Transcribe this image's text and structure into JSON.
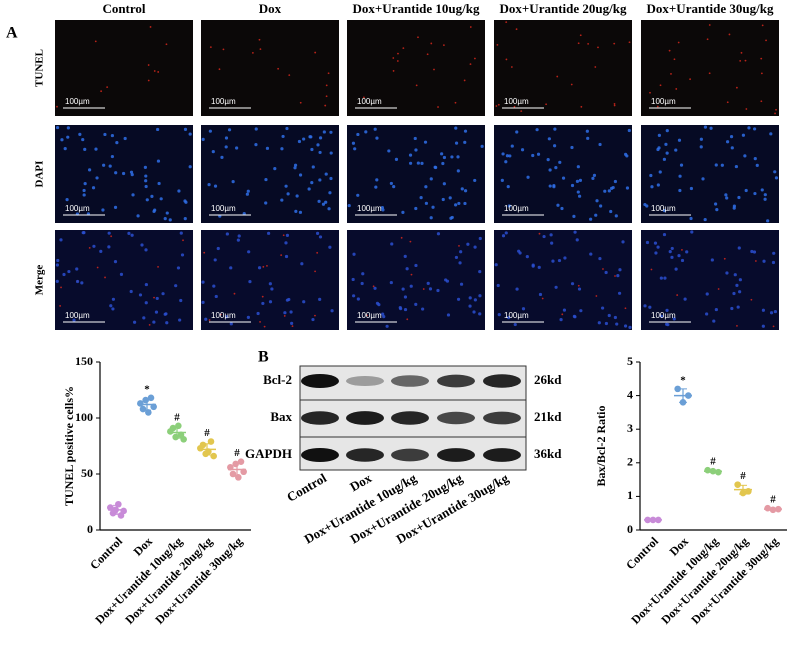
{
  "panel_a": {
    "label": "A",
    "columns": [
      "Control",
      "Dox",
      "Dox+Urantide 10ug/kg",
      "Dox+Urantide 20ug/kg",
      "Dox+Urantide 30ug/kg"
    ],
    "rows": [
      "TUNEL",
      "DAPI",
      "Merge"
    ],
    "scale_bar": "100µm"
  },
  "panel_b": {
    "label": "B",
    "blot_rows": [
      "Bcl-2",
      "Bax",
      "GAPDH"
    ],
    "sizes": [
      "26kd",
      "21kd",
      "36kd"
    ],
    "lanes": [
      "Control",
      "Dox",
      "Dox+Urantide 10ug/kg",
      "Dox+Urantide 20ug/kg",
      "Dox+Urantide 30ug/kg"
    ]
  },
  "chart_data": [
    {
      "type": "scatter",
      "y_label": "TUNEL positive cells%",
      "categories": [
        "Control",
        "Dox",
        "Dox+Urantide 10ug/kg",
        "Dox+Urantide 20ug/kg",
        "Dox+Urantide 30ug/kg"
      ],
      "points": [
        [
          20,
          15,
          18,
          23,
          13,
          17
        ],
        [
          113,
          108,
          116,
          105,
          118,
          110
        ],
        [
          88,
          91,
          83,
          93,
          85,
          81
        ],
        [
          73,
          76,
          68,
          70,
          79,
          66
        ],
        [
          56,
          50,
          59,
          47,
          61,
          52
        ]
      ],
      "means": [
        18,
        112,
        87,
        72,
        54
      ],
      "errors": [
        4,
        5,
        5,
        5,
        6
      ],
      "colors": [
        "#c88bd8",
        "#6b9fd6",
        "#8ccf7a",
        "#e2c64e",
        "#e49aa4"
      ],
      "annotations": [
        null,
        "*",
        "#",
        "#",
        "#"
      ],
      "ylim": [
        0,
        150
      ],
      "yticks": [
        0,
        50,
        100,
        150
      ]
    },
    {
      "type": "scatter",
      "y_label": "Bax/Bcl-2 Ratio",
      "categories": [
        "Control",
        "Dox",
        "Dox+Urantide 10ug/kg",
        "Dox+Urantide 20ug/kg",
        "Dox+Urantide 30ug/kg"
      ],
      "points": [
        [
          0.3,
          0.3,
          0.3
        ],
        [
          4.2,
          3.8,
          4.0
        ],
        [
          1.78,
          1.75,
          1.72
        ],
        [
          1.35,
          1.1,
          1.15
        ],
        [
          0.65,
          0.6,
          0.62
        ]
      ],
      "means": [
        0.3,
        4.0,
        1.75,
        1.2,
        0.62
      ],
      "errors": [
        0.01,
        0.2,
        0.03,
        0.13,
        0.03
      ],
      "colors": [
        "#c88bd8",
        "#6b9fd6",
        "#8ccf7a",
        "#e2c64e",
        "#e49aa4"
      ],
      "annotations": [
        null,
        "*",
        "#",
        "#",
        "#"
      ],
      "ylim": [
        0,
        5
      ],
      "yticks": [
        0,
        1,
        2,
        3,
        4,
        5
      ]
    }
  ]
}
